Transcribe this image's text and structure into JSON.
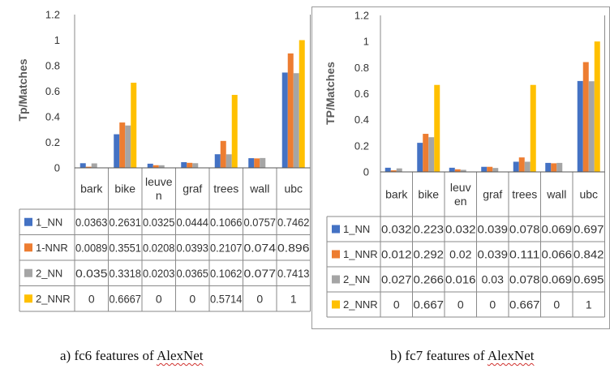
{
  "colors": {
    "1_NN": "#4472C4",
    "1-NNR": "#ED7D31",
    "2_NN": "#A5A5A5",
    "2_NNR": "#FFC000"
  },
  "captions": {
    "a": {
      "prefix": "a)    fc6 features of ",
      "underlined": "AlexNet"
    },
    "b": {
      "prefix": "b) fc7 features of ",
      "underlined": "AlexNet"
    }
  },
  "chart_data": [
    {
      "type": "bar",
      "ylabel": "Tp/Matches",
      "ylim": [
        0,
        1.2
      ],
      "yticks": [
        "0",
        "0.2",
        "0.4",
        "0.6",
        "0.8",
        "1",
        "1.2"
      ],
      "categories": [
        "bark",
        "bike",
        "leuve\nn",
        "graf",
        "trees",
        "wall",
        "ubc"
      ],
      "series": [
        {
          "name": "1_NN",
          "color": "#4472C4",
          "values": [
            0.0363,
            0.2631,
            0.0325,
            0.0444,
            0.1066,
            0.0757,
            0.7462
          ],
          "labels": [
            "0.0363",
            "0.2631",
            "0.0325",
            "0.0444",
            "0.1066",
            "0.0757",
            "0.7462"
          ]
        },
        {
          "name": "1-NNR",
          "color": "#ED7D31",
          "values": [
            0.0089,
            0.3551,
            0.0208,
            0.0393,
            0.2107,
            0.074,
            0.896
          ],
          "labels": [
            "0.0089",
            "0.3551",
            "0.0208",
            "0.0393",
            "0.2107",
            "0.074",
            "0.896"
          ]
        },
        {
          "name": "2_NN",
          "color": "#A5A5A5",
          "values": [
            0.035,
            0.3318,
            0.0203,
            0.0365,
            0.1062,
            0.077,
            0.7413
          ],
          "labels": [
            "0.035",
            "0.3318",
            "0.0203",
            "0.0365",
            "0.1062",
            "0.077",
            "0.7413"
          ]
        },
        {
          "name": "2_NNR",
          "color": "#FFC000",
          "values": [
            0,
            0.6667,
            0,
            0,
            0.5714,
            0,
            1
          ],
          "labels": [
            "0",
            "0.6667",
            "0",
            "0",
            "0.5714",
            "0",
            "1"
          ]
        }
      ]
    },
    {
      "type": "bar",
      "ylabel": "TP/Matches",
      "ylim": [
        0,
        1.2
      ],
      "yticks": [
        "0",
        "0.2",
        "0.4",
        "0.6",
        "0.8",
        "1",
        "1.2"
      ],
      "categories": [
        "bark",
        "bike",
        "leuv\nen",
        "graf",
        "trees",
        "wall",
        "ubc"
      ],
      "series": [
        {
          "name": "1_NN",
          "color": "#4472C4",
          "values": [
            0.032,
            0.223,
            0.032,
            0.039,
            0.078,
            0.069,
            0.697
          ],
          "labels": [
            "0.032",
            "0.223",
            "0.032",
            "0.039",
            "0.078",
            "0.069",
            "0.697"
          ]
        },
        {
          "name": "1_NNR",
          "color": "#ED7D31",
          "values": [
            0.012,
            0.292,
            0.02,
            0.039,
            0.111,
            0.066,
            0.842
          ],
          "labels": [
            "0.012",
            "0.292",
            "0.02",
            "0.039",
            "0.111",
            "0.066",
            "0.842"
          ]
        },
        {
          "name": "2_NN",
          "color": "#A5A5A5",
          "values": [
            0.027,
            0.266,
            0.016,
            0.03,
            0.078,
            0.069,
            0.695
          ],
          "labels": [
            "0.027",
            "0.266",
            "0.016",
            "0.03",
            "0.078",
            "0.069",
            "0.695"
          ]
        },
        {
          "name": "2_NNR",
          "color": "#FFC000",
          "values": [
            0,
            0.667,
            0,
            0,
            0.667,
            0,
            1
          ],
          "labels": [
            "0",
            "0.667",
            "0",
            "0",
            "0.667",
            "0",
            "1"
          ]
        }
      ]
    }
  ]
}
